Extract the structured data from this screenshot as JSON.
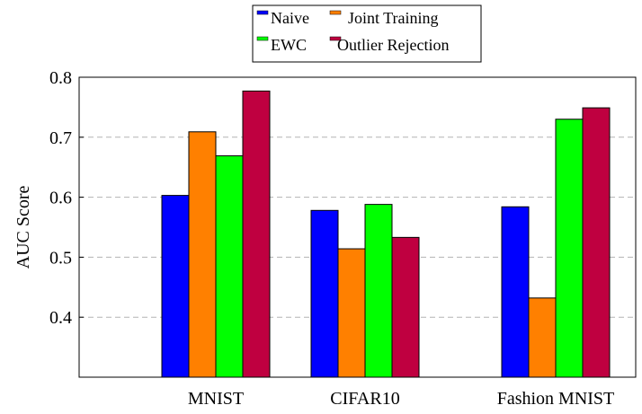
{
  "chart_data": {
    "type": "bar",
    "categories": [
      "MNIST",
      "CIFAR10",
      "Fashion MNIST"
    ],
    "series": [
      {
        "name": "Naive",
        "color": "#0000ff",
        "values": [
          0.603,
          0.578,
          0.584
        ]
      },
      {
        "name": "Joint Training",
        "color": "#ff8000",
        "values": [
          0.709,
          0.514,
          0.432
        ]
      },
      {
        "name": "EWC",
        "color": "#00ff00",
        "values": [
          0.669,
          0.588,
          0.73
        ]
      },
      {
        "name": "Outlier Rejection",
        "color": "#bf0040",
        "values": [
          0.777,
          0.533,
          0.749
        ]
      }
    ],
    "ylabel": "AUC Score",
    "xlabel": "",
    "ylim": [
      0.3,
      0.8
    ],
    "yticks": [
      "0.4",
      "0.5",
      "0.6",
      "0.7",
      "0.8"
    ],
    "grid": "horizontal dashed",
    "legend_position": "top-center"
  }
}
